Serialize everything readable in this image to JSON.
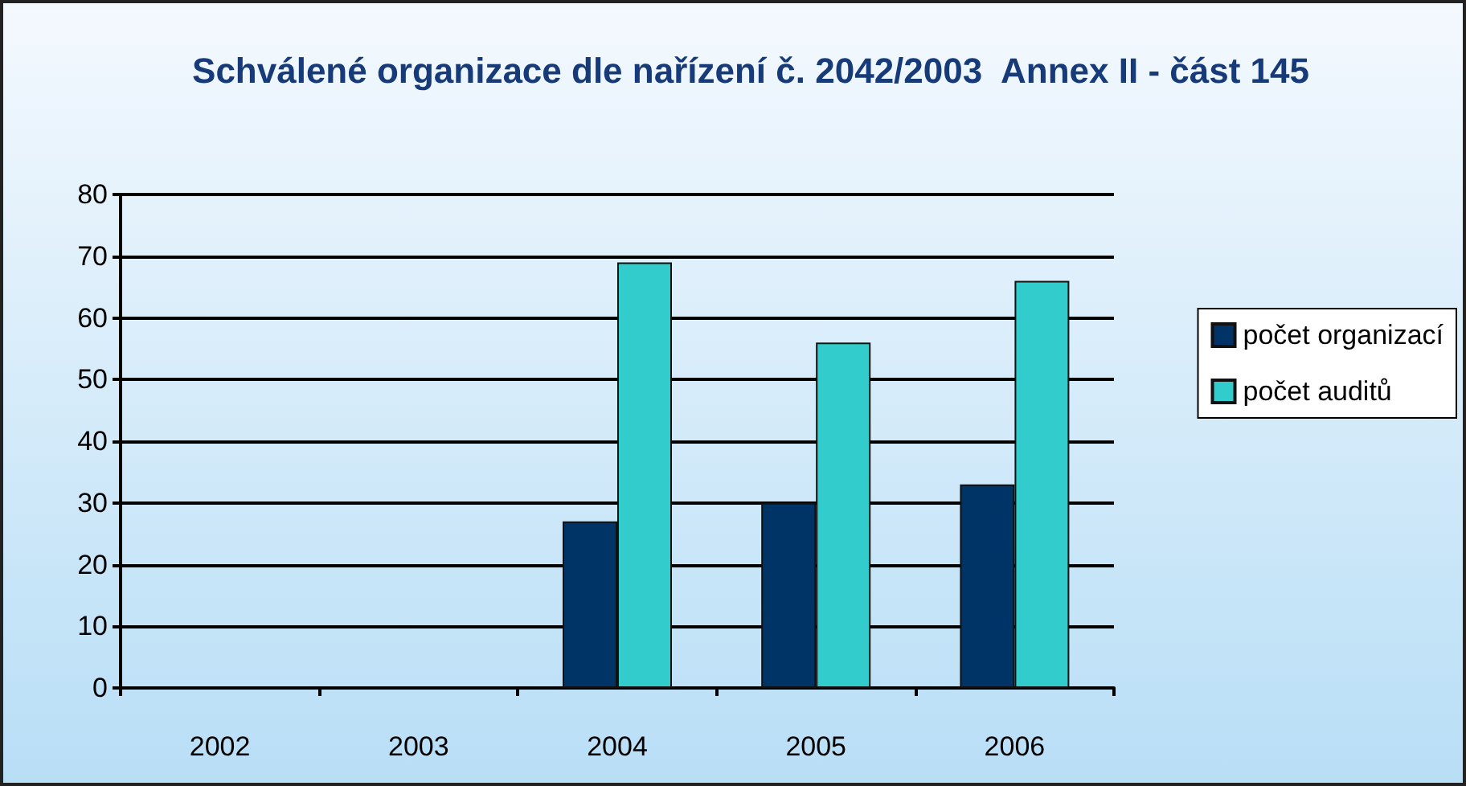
{
  "chart_data": {
    "type": "bar",
    "title": "Schválené organizace dle nařízení č. 2042/2003  Annex II - část 145",
    "categories": [
      "2002",
      "2003",
      "2004",
      "2005",
      "2006"
    ],
    "series": [
      {
        "name": "počet organizací",
        "color": "#003366",
        "values": [
          null,
          null,
          27,
          30,
          33
        ]
      },
      {
        "name": "počet auditů",
        "color": "#33cccc",
        "values": [
          null,
          null,
          69,
          56,
          66
        ]
      }
    ],
    "ylim": [
      0,
      80
    ],
    "yticks": [
      0,
      10,
      20,
      30,
      40,
      50,
      60,
      70,
      80
    ],
    "grid": "y",
    "legend": "right"
  }
}
